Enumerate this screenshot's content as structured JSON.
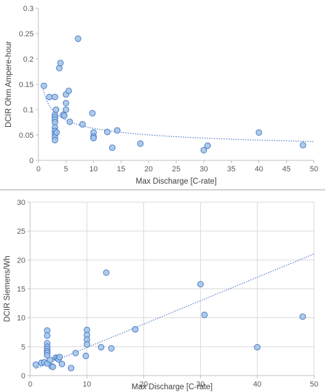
{
  "chart_data": [
    {
      "type": "scatter",
      "xlabel": "Max Discharge [C-rate]",
      "ylabel": "DCIR Ohm Ampere-hour",
      "xlim": [
        0,
        50
      ],
      "ylim": [
        0,
        0.3
      ],
      "xticks": [
        "0",
        "5",
        "10",
        "15",
        "20",
        "25",
        "30",
        "35",
        "40",
        "45",
        "50"
      ],
      "yticks": [
        "0",
        "0.05",
        "0.1",
        "0.15",
        "0.2",
        "0.25",
        "0.3"
      ],
      "grid": false,
      "legend": "none",
      "marker_color": "#9dc3e6",
      "marker_edge": "#4472c4",
      "trendline": {
        "type": "power",
        "coef": 0.135,
        "exponent": -0.33,
        "x_from": 0.9,
        "x_to": 50,
        "color": "#4472c4",
        "style": "dotted"
      },
      "points": [
        [
          1,
          0.147
        ],
        [
          2,
          0.125
        ],
        [
          3,
          0.125
        ],
        [
          3,
          0.09
        ],
        [
          3,
          0.085
        ],
        [
          3,
          0.08
        ],
        [
          3,
          0.075
        ],
        [
          3,
          0.065
        ],
        [
          3,
          0.058
        ],
        [
          3,
          0.052
        ],
        [
          3,
          0.046
        ],
        [
          3,
          0.04
        ],
        [
          3.2,
          0.1
        ],
        [
          3.3,
          0.055
        ],
        [
          3.8,
          0.182
        ],
        [
          4,
          0.192
        ],
        [
          4.5,
          0.09
        ],
        [
          4.7,
          0.088
        ],
        [
          5,
          0.13
        ],
        [
          5,
          0.113
        ],
        [
          5,
          0.1
        ],
        [
          5.5,
          0.137
        ],
        [
          5.7,
          0.076
        ],
        [
          7.2,
          0.24
        ],
        [
          8,
          0.071
        ],
        [
          9.8,
          0.093
        ],
        [
          10,
          0.055
        ],
        [
          10,
          0.047
        ],
        [
          10,
          0.044
        ],
        [
          12.5,
          0.056
        ],
        [
          13.4,
          0.025
        ],
        [
          14.3,
          0.059
        ],
        [
          18.5,
          0.033
        ],
        [
          30,
          0.02
        ],
        [
          30.7,
          0.029
        ],
        [
          40,
          0.055
        ],
        [
          48,
          0.03
        ]
      ]
    },
    {
      "type": "scatter",
      "xlabel": "Max Discharge [C-rate]",
      "ylabel": "DCIR Siemens/Wh",
      "xlim": [
        0,
        50
      ],
      "ylim": [
        0,
        30
      ],
      "xticks": [
        "0",
        "10",
        "20",
        "30",
        "40",
        "50"
      ],
      "yticks": [
        "0",
        "5",
        "10",
        "15",
        "20",
        "25",
        "30"
      ],
      "grid": true,
      "legend": "none",
      "marker_color": "#9dc3e6",
      "marker_edge": "#4472c4",
      "trendline": {
        "type": "linear",
        "slope": 0.405,
        "intercept": 0.8,
        "x_from": 0.9,
        "x_to": 50,
        "color": "#4472c4",
        "style": "dotted"
      },
      "points": [
        [
          1,
          1.9
        ],
        [
          2,
          2.2
        ],
        [
          2.5,
          2.3
        ],
        [
          3,
          7.8
        ],
        [
          3,
          6.9
        ],
        [
          3,
          5.6
        ],
        [
          3,
          5.0
        ],
        [
          3,
          4.6
        ],
        [
          3,
          4.2
        ],
        [
          3,
          3.9
        ],
        [
          3,
          3.5
        ],
        [
          3,
          2.1
        ],
        [
          3.5,
          2.7
        ],
        [
          3.8,
          1.6
        ],
        [
          4,
          1.5
        ],
        [
          4.5,
          3.1
        ],
        [
          4.8,
          3.0
        ],
        [
          5,
          2.8
        ],
        [
          5.2,
          3.2
        ],
        [
          5.6,
          2.0
        ],
        [
          7.2,
          1.3
        ],
        [
          8,
          3.9
        ],
        [
          9.8,
          3.4
        ],
        [
          10,
          7.9
        ],
        [
          10,
          7.0
        ],
        [
          10,
          6.2
        ],
        [
          10,
          5.4
        ],
        [
          12.5,
          4.9
        ],
        [
          13.4,
          17.8
        ],
        [
          14.3,
          4.7
        ],
        [
          18.5,
          8.0
        ],
        [
          30,
          15.8
        ],
        [
          30.7,
          10.5
        ],
        [
          40,
          4.9
        ],
        [
          48,
          10.2
        ]
      ]
    }
  ]
}
